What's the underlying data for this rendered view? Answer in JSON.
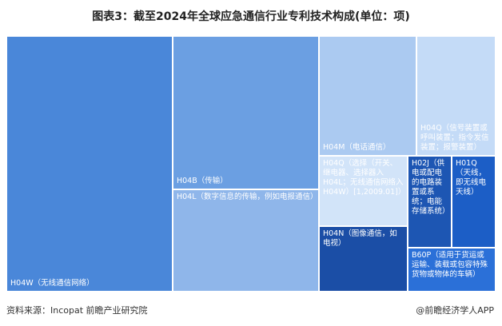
{
  "chart_data": {
    "type": "treemap",
    "title": "图表3：截至2024年全球应急通信行业专利技术构成(单位：项)",
    "categories": [
      "H04W（无线通信网络）",
      "H04B（传输）",
      "H04L（数字信息的传输，例如电报通信）",
      "H04M（电话通信）",
      "H04Q（信号装置或呼叫装置；指令发信装置；报警装置）",
      "H04Q（选择（开关、继电器、选择器入H04L；无线通信网络入H04W）[1,2009.01]）",
      "H04N（图像通信，如电视）",
      "H02J（供电或配电的电路装置或系统；电能存储系统）",
      "H01Q（天线，即无线电天线）",
      "B60P（适用于货运或运输、装载或包容特殊货物或物体的车辆）"
    ],
    "values": [
      6656,
      3514,
      2342,
      1830,
      1485,
      977,
      910,
      633,
      633,
      605
    ],
    "colors": [
      "#4a87d9",
      "#6b9fe2",
      "#8fb6ea",
      "#abcaf1",
      "#c4dbf7",
      "#d2e4f9",
      "#1b4ea6",
      "#1d56b3",
      "#1c5ec6",
      "#2b70d8"
    ],
    "source": "资料来源：Incopat 前瞻产业研究院",
    "credit": "@前瞻经济学人APP"
  }
}
